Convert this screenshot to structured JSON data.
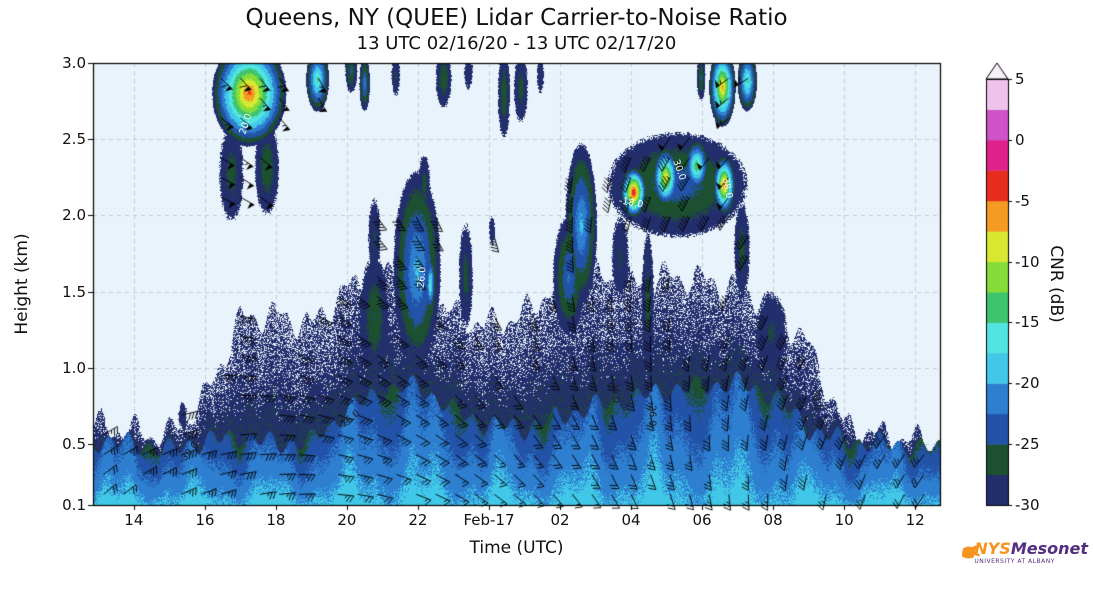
{
  "header": {
    "title": "Queens, NY (QUEE) Lidar Carrier-to-Noise Ratio",
    "subtitle": "13 UTC 02/16/20 - 13 UTC 02/17/20"
  },
  "axes": {
    "x_label": "Time (UTC)",
    "y_label": "Height (km)"
  },
  "colorbar": {
    "label": "CNR (dB)"
  },
  "logo": {
    "nys": "NYS",
    "mesonet": "Mesonet",
    "tagline": "UNIVERSITY AT ALBANY",
    "orange": "#f7941e",
    "purple": "#522d80"
  },
  "chart_data": {
    "type": "heatmap",
    "title": "Queens, NY (QUEE) Lidar Carrier-to-Noise Ratio",
    "subtitle": "13 UTC 02/16/20 - 13 UTC 02/17/20",
    "xlabel": "Time (UTC)",
    "ylabel": "Height (km)",
    "colorbar_label": "CNR (dB)",
    "x_range_hours": [
      12.85,
      36.7
    ],
    "y_range_km": [
      0.1,
      3.0
    ],
    "x_tick_hours": [
      14,
      16,
      18,
      20,
      22,
      24,
      26,
      28,
      30,
      32,
      34,
      36
    ],
    "x_tick_labels": [
      "14",
      "16",
      "18",
      "20",
      "22",
      "Feb-17",
      "02",
      "04",
      "06",
      "08",
      "10",
      "12"
    ],
    "y_tick_km": [
      3.0,
      2.5,
      2.0,
      1.5,
      1.0,
      0.5,
      0.1
    ],
    "y_tick_labels": [
      "3.0",
      "2.5",
      "2.0",
      "1.5",
      "1.0",
      "0.5",
      "0.1"
    ],
    "cnr_range_db": [
      -30,
      5
    ],
    "cnr_bin_db": 2.5,
    "colorbar_tick_values": [
      5,
      0,
      -5,
      -10,
      -15,
      -20,
      -25,
      -30
    ],
    "colorbar_tick_labels": [
      "5",
      "0",
      "-5",
      "-10",
      "-15",
      "-20",
      "-25",
      "-30"
    ],
    "colormap": [
      "#232e6d",
      "#1c5030",
      "#2353a8",
      "#2e7fd0",
      "#41c8e8",
      "#52e4e0",
      "#3ec46e",
      "#86dc38",
      "#d8e830",
      "#f59a22",
      "#e82c1e",
      "#e0218a",
      "#cf53c8",
      "#eec2ea"
    ],
    "over_color": "#f8f0f8",
    "plot_background": "#e9f3fb",
    "grid_color": "#c6ccd6",
    "boundary_layer": {
      "hours": [
        13,
        14,
        15,
        16,
        17,
        18,
        19,
        20,
        21,
        22,
        23,
        24,
        25,
        26,
        27,
        28,
        29,
        30,
        31,
        32,
        33,
        34,
        35,
        36,
        37
      ],
      "cyan_top_km": [
        0.52,
        0.5,
        0.46,
        0.52,
        0.55,
        0.5,
        0.52,
        0.72,
        0.85,
        0.88,
        0.72,
        0.62,
        0.6,
        0.68,
        0.75,
        0.8,
        0.85,
        0.88,
        0.9,
        0.82,
        0.6,
        0.52,
        0.5,
        0.48,
        0.46
      ],
      "cap_top_km": [
        0.62,
        0.58,
        0.56,
        0.8,
        1.32,
        1.35,
        1.28,
        1.52,
        1.62,
        1.55,
        1.35,
        1.28,
        1.35,
        1.58,
        1.62,
        1.55,
        1.6,
        1.58,
        1.52,
        1.42,
        1.15,
        0.62,
        0.56,
        0.52,
        0.5
      ],
      "surface_cnr_db": -19.2,
      "layer_top_cnr_db": -24.2,
      "cap_cnr_db": [
        -28.4,
        -30.2
      ]
    },
    "features": [
      [
        16.2,
        18.3,
        2.45,
        3.15,
        -4
      ],
      [
        16.4,
        17.1,
        1.95,
        2.6,
        -26
      ],
      [
        17.4,
        18.1,
        2.0,
        2.62,
        -25
      ],
      [
        18.85,
        19.5,
        2.68,
        3.1,
        -14
      ],
      [
        19.95,
        20.3,
        2.8,
        3.1,
        -24
      ],
      [
        20.35,
        20.65,
        2.68,
        3.05,
        -21
      ],
      [
        21.25,
        21.5,
        2.78,
        3.05,
        -27
      ],
      [
        22.5,
        22.95,
        2.7,
        3.1,
        -25
      ],
      [
        23.3,
        23.55,
        2.82,
        3.05,
        -28
      ],
      [
        24.25,
        24.6,
        2.5,
        3.1,
        -25
      ],
      [
        24.7,
        25.1,
        2.6,
        3.08,
        -26
      ],
      [
        25.35,
        25.55,
        2.8,
        3.05,
        -28
      ],
      [
        20.35,
        21.2,
        0.9,
        1.75,
        -25
      ],
      [
        20.6,
        20.95,
        1.6,
        2.12,
        -27
      ],
      [
        21.3,
        22.65,
        1.0,
        2.3,
        -19
      ],
      [
        22.2,
        22.5,
        1.35,
        1.75,
        -15
      ],
      [
        22.0,
        22.35,
        2.0,
        2.4,
        -26
      ],
      [
        23.15,
        23.55,
        1.25,
        1.95,
        -26
      ],
      [
        24.0,
        24.18,
        1.8,
        2.0,
        -28
      ],
      [
        25.8,
        26.7,
        1.2,
        2.0,
        -22
      ],
      [
        26.15,
        27.05,
        1.4,
        2.48,
        -19
      ],
      [
        27.3,
        31.3,
        1.85,
        2.55,
        -23
      ],
      [
        27.7,
        28.45,
        1.98,
        2.32,
        -1.5
      ],
      [
        28.6,
        29.35,
        2.05,
        2.45,
        -7
      ],
      [
        29.5,
        30.2,
        2.15,
        2.5,
        -12
      ],
      [
        30.3,
        30.95,
        2.0,
        2.4,
        -4.5
      ],
      [
        30.2,
        30.95,
        2.58,
        3.1,
        -6
      ],
      [
        31.0,
        31.55,
        2.68,
        3.08,
        -14
      ],
      [
        29.85,
        30.1,
        2.75,
        3.05,
        -24
      ],
      [
        27.45,
        27.95,
        1.45,
        2.0,
        -27
      ],
      [
        28.3,
        28.65,
        0.95,
        1.9,
        -26
      ],
      [
        30.9,
        31.35,
        1.45,
        2.1,
        -26
      ],
      [
        31.5,
        32.4,
        0.95,
        1.5,
        -27
      ],
      [
        15.25,
        15.5,
        0.6,
        0.78,
        -28
      ],
      [
        18.1,
        18.3,
        0.55,
        0.68,
        -27
      ]
    ],
    "contour_labels": [
      {
        "text": "-30.0",
        "t": 15.55,
        "z": 0.44,
        "rot": -50,
        "color": "#1f1f1f"
      },
      {
        "text": "-26.0",
        "t": 20.05,
        "z": 0.66,
        "rot": -38,
        "color": "#1f1f1f"
      },
      {
        "text": "-26.0",
        "t": 22.12,
        "z": 1.58,
        "rot": -85,
        "color": "#f2f2f2"
      },
      {
        "text": "-26.0",
        "t": 24.3,
        "z": 1.32,
        "rot": 0,
        "color": "#f2f2f2"
      },
      {
        "text": "-26.0",
        "t": 28.6,
        "z": 0.7,
        "rot": 90,
        "color": "#1f1f1f"
      },
      {
        "text": "-26.0",
        "t": 27.55,
        "z": 0.85,
        "rot": 85,
        "color": "#1f1f1f"
      },
      {
        "text": "-18.0",
        "t": 28.0,
        "z": 2.08,
        "rot": 10,
        "color": "#ffffff"
      },
      {
        "text": "30.0",
        "t": 29.35,
        "z": 2.3,
        "rot": 70,
        "color": "#f2f2f2"
      },
      {
        "text": "38.0",
        "t": 30.7,
        "z": 2.18,
        "rot": 78,
        "color": "#f2f2f2"
      },
      {
        "text": "20.0",
        "t": 17.15,
        "z": 2.6,
        "rot": -72,
        "color": "#f2f2f2"
      },
      {
        "text": "-30.0",
        "t": 33.2,
        "z": 0.8,
        "rot": 85,
        "color": "#1f1f1f"
      }
    ],
    "wind_barbs": {
      "dir0_deg": 45,
      "dir_per_hour_deg": 7,
      "dir_per_km_deg": 22,
      "speed0_kt": 18,
      "speed_per_km_kt": 12,
      "speed_amp_kt": 6,
      "spacing_hours": 0.55,
      "spacing_km": 0.13
    }
  }
}
